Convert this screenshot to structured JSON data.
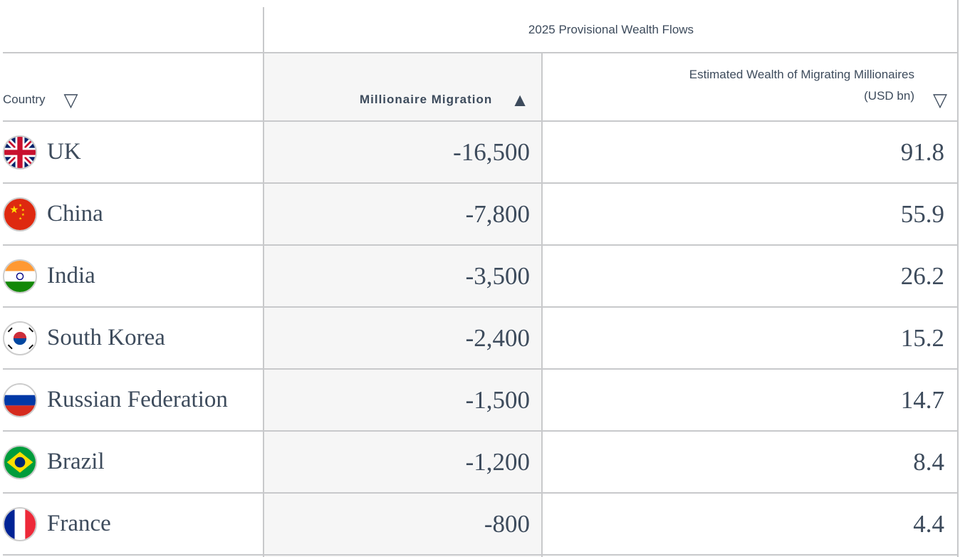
{
  "table": {
    "group_header": "2025 Provisional Wealth Flows",
    "columns": [
      {
        "label": "Country",
        "sort": "none",
        "icon": "sort-down-outline-icon"
      },
      {
        "label": "Millionaire Migration",
        "sort": "ascending",
        "icon": "sort-up-filled-icon"
      },
      {
        "label": "Estimated Wealth of Migrating Millionaires",
        "label2": "(USD bn)",
        "sort": "none",
        "icon": "sort-down-outline-icon"
      }
    ],
    "sort_icons": {
      "outline": "▽",
      "filled": "▲"
    },
    "rows": [
      {
        "country": "UK",
        "flag": "uk",
        "migration": "-16,500",
        "wealth": "91.8"
      },
      {
        "country": "China",
        "flag": "china",
        "migration": "-7,800",
        "wealth": "55.9"
      },
      {
        "country": "India",
        "flag": "india",
        "migration": "-3,500",
        "wealth": "26.2"
      },
      {
        "country": "South Korea",
        "flag": "south-korea",
        "migration": "-2,400",
        "wealth": "15.2"
      },
      {
        "country": "Russian Federation",
        "flag": "russia",
        "migration": "-1,500",
        "wealth": "14.7"
      },
      {
        "country": "Brazil",
        "flag": "brazil",
        "migration": "-1,200",
        "wealth": "8.4"
      },
      {
        "country": "France",
        "flag": "france",
        "migration": "-800",
        "wealth": "4.4"
      }
    ]
  }
}
